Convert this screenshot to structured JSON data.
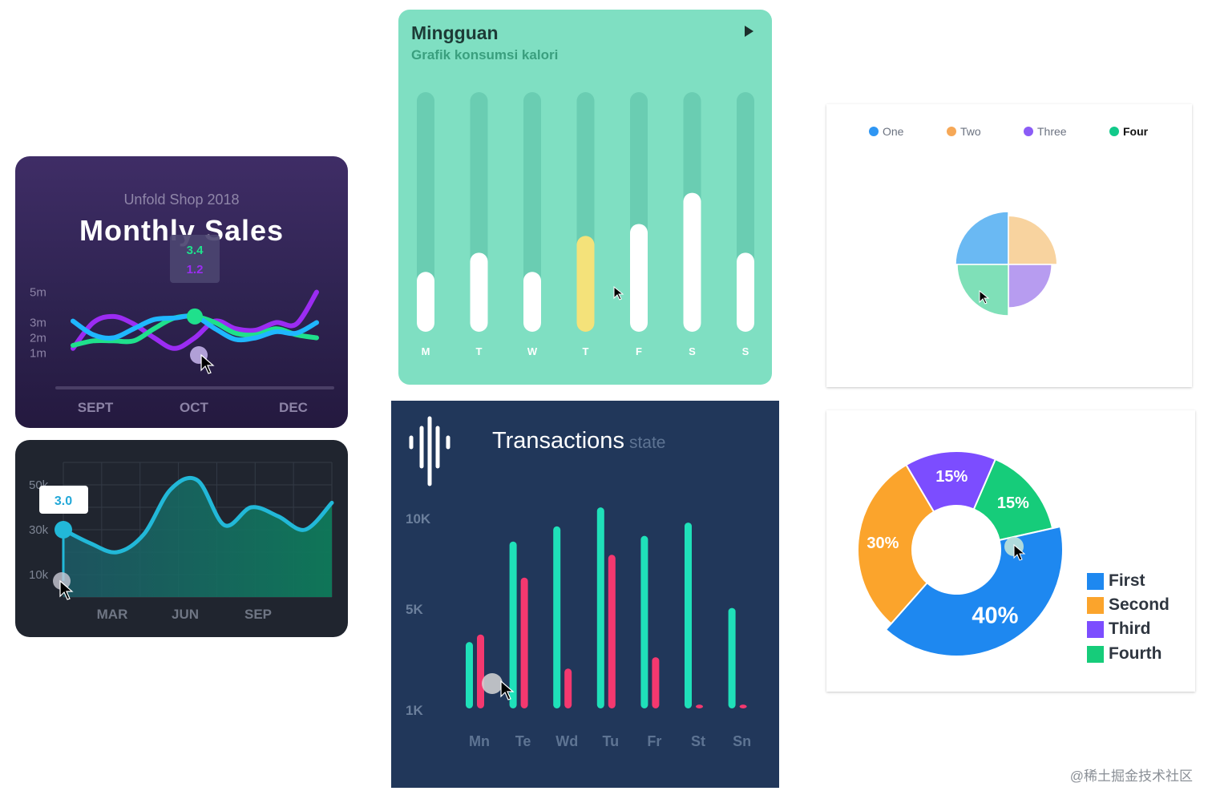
{
  "sales": {
    "subtitle": "Unfold Shop 2018",
    "title": "Monthly Sales",
    "tooltip": {
      "value_a": "3.4",
      "value_b": "1.2"
    }
  },
  "revenue": {
    "tooltip_value": "3.0"
  },
  "calorie": {
    "title": "Mingguan",
    "subtitle": "Grafik konsumsi kalori"
  },
  "transactions": {
    "title": "Transactions",
    "title_suffix": "state"
  },
  "pie": {
    "legend": [
      {
        "label": "One",
        "color": "#2f96f3"
      },
      {
        "label": "Two",
        "color": "#f6a857"
      },
      {
        "label": "Three",
        "color": "#8b5cf6"
      },
      {
        "label": "Four",
        "color": "#12c98a"
      }
    ]
  },
  "donut": {
    "legend": [
      {
        "label": "First",
        "color": "#1e88f0"
      },
      {
        "label": "Second",
        "color": "#fba42c"
      },
      {
        "label": "Third",
        "color": "#7c4dff"
      },
      {
        "label": "Fourth",
        "color": "#16cc7a"
      }
    ]
  },
  "watermark": "@稀土掘金技术社区",
  "chart_data": [
    {
      "id": "monthly-sales",
      "type": "line",
      "title": "Monthly Sales",
      "subtitle": "Unfold Shop 2018",
      "categories": [
        "SEPT",
        "OCT",
        "DEC"
      ],
      "y_ticks": [
        "1m",
        "2m",
        "3m",
        "5m"
      ],
      "ylim": [
        0.5,
        5.5
      ],
      "x": [
        0,
        0.5,
        1,
        1.5,
        2,
        2.5,
        3,
        3.5,
        4,
        4.5,
        5,
        5.5,
        6
      ],
      "series": [
        {
          "color": "#9b2cf2",
          "values": [
            1.3,
            3.0,
            3.4,
            2.9,
            2.0,
            1.3,
            2.0,
            3.1,
            2.6,
            2.5,
            3.0,
            2.9,
            5.0
          ]
        },
        {
          "color": "#1fe08c",
          "values": [
            1.5,
            1.8,
            1.8,
            1.8,
            2.6,
            3.3,
            3.4,
            3.0,
            2.3,
            2.2,
            2.6,
            2.2,
            2.0
          ]
        },
        {
          "color": "#1fb7ff",
          "values": [
            3.1,
            2.2,
            2.0,
            2.6,
            3.2,
            3.3,
            3.4,
            2.6,
            1.9,
            2.0,
            2.4,
            2.3,
            3.0
          ]
        }
      ],
      "tooltip_x": 3,
      "tooltip_values": [
        "3.4",
        "1.2"
      ],
      "grid": false
    },
    {
      "id": "revenue-area",
      "type": "area",
      "categories": [
        "MAR",
        "JUN",
        "SEP"
      ],
      "y_ticks": [
        "10k",
        "30k",
        "50k"
      ],
      "ylim": [
        0,
        60
      ],
      "x": [
        0,
        1,
        2,
        3,
        4,
        5,
        6,
        7,
        8,
        9,
        10
      ],
      "values": [
        30,
        24,
        20,
        28,
        48,
        52,
        32,
        40,
        36,
        30,
        42
      ],
      "tooltip_value": "3.0",
      "grid": true,
      "color": "#22b8d8"
    },
    {
      "id": "calorie-weekly",
      "type": "bar",
      "title": "Mingguan",
      "subtitle": "Grafik konsumsi kalori",
      "categories": [
        "M",
        "T",
        "W",
        "T",
        "F",
        "S",
        "S"
      ],
      "values": [
        25,
        33,
        25,
        40,
        45,
        58,
        33
      ],
      "max": 100,
      "highlight_index": 3,
      "highlight_color": "#f4e27a"
    },
    {
      "id": "transactions",
      "type": "bar",
      "title": "Transactions",
      "categories": [
        "Mn",
        "Te",
        "Wd",
        "Tu",
        "Fr",
        "St",
        "Sn"
      ],
      "y_ticks": [
        "1K",
        "5K",
        "10K"
      ],
      "ylim": [
        0,
        12
      ],
      "series": [
        {
          "color": "#1fe0b9",
          "values": [
            3.5,
            8.8,
            9.6,
            10.6,
            9.1,
            9.8,
            5.3
          ]
        },
        {
          "color": "#f4386f",
          "values": [
            3.9,
            6.9,
            2.1,
            8.1,
            2.7,
            0.2,
            0.2
          ]
        }
      ]
    },
    {
      "id": "quarter-pie",
      "type": "pie",
      "labels": [
        "One",
        "Two",
        "Three",
        "Four"
      ],
      "values": [
        25,
        25,
        25,
        25
      ],
      "radii": [
        1.0,
        0.92,
        0.82,
        0.97
      ],
      "colors": [
        "#6ab9f3",
        "#f8d39f",
        "#b79cf0",
        "#7fe0b8"
      ]
    },
    {
      "id": "share-donut",
      "type": "pie",
      "labels": [
        "First",
        "Second",
        "Third",
        "Fourth"
      ],
      "values": [
        40,
        30,
        15,
        15
      ],
      "value_labels": [
        "40%",
        "30%",
        "15%",
        "15%"
      ],
      "colors": [
        "#1e88f0",
        "#fba42c",
        "#7c4dff",
        "#16cc7a"
      ]
    }
  ]
}
